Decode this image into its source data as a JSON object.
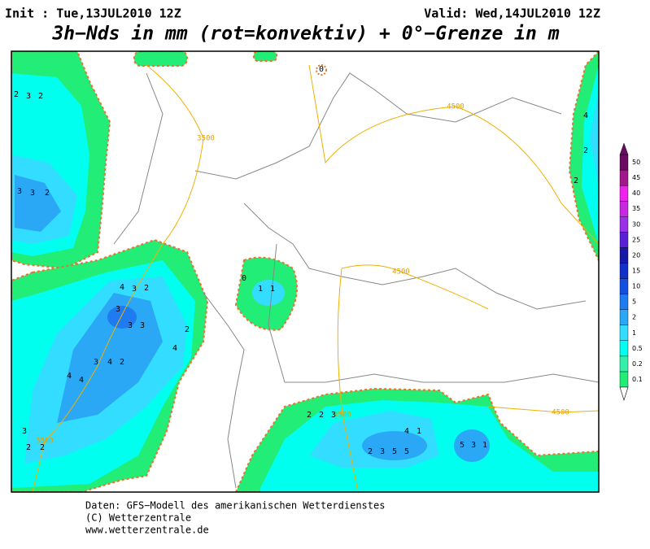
{
  "header": {
    "init": "Init : Tue,13JUL2010 12Z",
    "valid": "Valid: Wed,14JUL2010 12Z",
    "title": "3h−Nds in mm (rot=konvektiv) + 0°−Grenze in m"
  },
  "legend": {
    "levels": [
      {
        "label": "0.1",
        "color": "#22ee77"
      },
      {
        "label": "0.2",
        "color": "#33f0a8"
      },
      {
        "label": "0.5",
        "color": "#00ffee"
      },
      {
        "label": "1",
        "color": "#33ddff"
      },
      {
        "label": "2",
        "color": "#2aa8f5"
      },
      {
        "label": "5",
        "color": "#1e7cf0"
      },
      {
        "label": "10",
        "color": "#1450e0"
      },
      {
        "label": "15",
        "color": "#1230c8"
      },
      {
        "label": "20",
        "color": "#1818a8"
      },
      {
        "label": "25",
        "color": "#5a20d8"
      },
      {
        "label": "30",
        "color": "#9a30e8"
      },
      {
        "label": "35",
        "color": "#c828e0"
      },
      {
        "label": "40",
        "color": "#ee22ee"
      },
      {
        "label": "45",
        "color": "#a0188c"
      },
      {
        "label": "50",
        "color": "#6a0a60"
      }
    ]
  },
  "contour_labels": [
    "3500",
    "4500",
    "4500",
    "4500",
    "4500",
    "3500"
  ],
  "map_values": [
    "2",
    "3",
    "2",
    "3",
    "3",
    "2",
    "4",
    "3",
    "2",
    "3",
    "3",
    "3",
    "3",
    "4",
    "2",
    "4",
    "4",
    "4",
    "2",
    "3",
    "2",
    "2",
    "2",
    "2",
    "3",
    "2",
    "3",
    "5",
    "5",
    "4",
    "1",
    "5",
    "3",
    "1",
    "4",
    "2",
    "2",
    "1",
    "1",
    "0",
    "0"
  ],
  "footer": {
    "source": "Daten: GFS−Modell des amerikanischen Wetterdienstes",
    "copyright": "(C) Wetterzentrale",
    "url": "www.wetterzentrale.de"
  }
}
